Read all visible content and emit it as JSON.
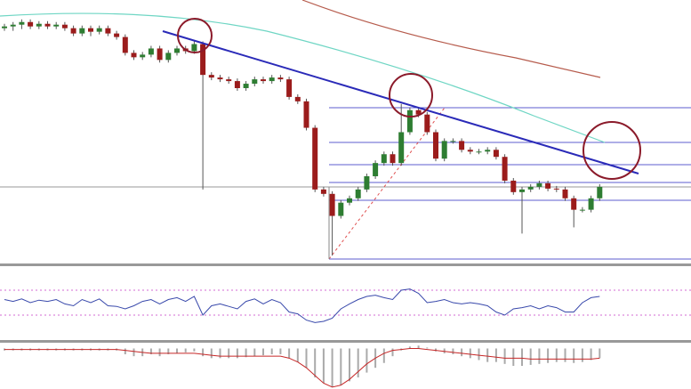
{
  "chart_data": {
    "type": "candlestick",
    "up_color": "#2e7d32",
    "down_color": "#9b1c1c",
    "ylim": [
      0,
      300
    ],
    "open": [
      268,
      270,
      272,
      275,
      270,
      273,
      270,
      272,
      268,
      262,
      268,
      264,
      268,
      262,
      258,
      240,
      235,
      238,
      245,
      232,
      240,
      245,
      242,
      250,
      215,
      212,
      210,
      208,
      200,
      205,
      210,
      208,
      212,
      210,
      190,
      185,
      155,
      85,
      80,
      55,
      70,
      75,
      85,
      100,
      115,
      125,
      115,
      150,
      175,
      170,
      150,
      120,
      140,
      140,
      130,
      128,
      128,
      130,
      122,
      95,
      82,
      85,
      88,
      92,
      86,
      85,
      75,
      62,
      62,
      75
    ],
    "high": [
      273,
      275,
      278,
      278,
      276,
      276,
      275,
      275,
      271,
      271,
      271,
      271,
      271,
      265,
      261,
      243,
      241,
      248,
      248,
      243,
      248,
      248,
      253,
      253,
      218,
      215,
      213,
      211,
      208,
      213,
      213,
      215,
      215,
      213,
      193,
      188,
      158,
      88,
      83,
      73,
      78,
      88,
      103,
      118,
      128,
      128,
      182,
      178,
      178,
      173,
      153,
      143,
      143,
      143,
      133,
      131,
      133,
      133,
      125,
      98,
      88,
      91,
      95,
      95,
      89,
      88,
      78,
      65,
      78,
      91
    ],
    "low": [
      265,
      265,
      267,
      267,
      267,
      267,
      267,
      265,
      259,
      259,
      259,
      261,
      259,
      255,
      237,
      232,
      232,
      235,
      229,
      229,
      237,
      239,
      239,
      85,
      209,
      207,
      205,
      197,
      197,
      202,
      205,
      205,
      207,
      187,
      182,
      152,
      82,
      77,
      10,
      52,
      67,
      72,
      82,
      97,
      112,
      112,
      112,
      147,
      167,
      147,
      117,
      117,
      137,
      127,
      125,
      125,
      125,
      119,
      92,
      79,
      35,
      82,
      85,
      83,
      82,
      72,
      42,
      59,
      59,
      72
    ],
    "close": [
      270,
      272,
      275,
      270,
      273,
      270,
      272,
      268,
      262,
      268,
      264,
      268,
      262,
      258,
      240,
      235,
      238,
      245,
      232,
      240,
      245,
      242,
      250,
      215,
      212,
      210,
      208,
      200,
      205,
      210,
      208,
      212,
      210,
      190,
      185,
      155,
      85,
      80,
      55,
      70,
      75,
      85,
      100,
      115,
      125,
      115,
      150,
      175,
      170,
      150,
      120,
      140,
      140,
      130,
      128,
      128,
      130,
      122,
      95,
      82,
      85,
      88,
      92,
      86,
      85,
      75,
      62,
      62,
      75,
      88
    ],
    "rsi": {
      "color": "#3949ab",
      "ylim": [
        0,
        100
      ],
      "levels": [
        70,
        30
      ],
      "level_color": "#d36bd3",
      "values": [
        55,
        52,
        56,
        50,
        54,
        52,
        55,
        48,
        45,
        55,
        50,
        56,
        45,
        44,
        40,
        45,
        52,
        55,
        48,
        55,
        58,
        52,
        60,
        30,
        45,
        48,
        44,
        40,
        52,
        56,
        48,
        55,
        50,
        35,
        32,
        22,
        18,
        20,
        25,
        40,
        48,
        55,
        60,
        62,
        58,
        55,
        70,
        72,
        65,
        50,
        52,
        55,
        50,
        48,
        50,
        48,
        45,
        35,
        30,
        40,
        42,
        45,
        40,
        45,
        42,
        35,
        35,
        50,
        58,
        60
      ]
    },
    "macd": {
      "ylim": [
        -42,
        6
      ],
      "hist_color": "#aaaaaa",
      "line_color": "#c62828",
      "histogram": [
        -2,
        -2,
        -2,
        -2,
        -2,
        -2,
        -2,
        -2,
        -2,
        -2,
        -2,
        -2,
        -2,
        -2,
        -6,
        -8,
        -8,
        -6,
        -8,
        -6,
        -5,
        -4,
        -3,
        -8,
        -10,
        -10,
        -10,
        -10,
        -9,
        -8,
        -7,
        -6,
        -6,
        -10,
        -14,
        -20,
        -30,
        -36,
        -40,
        -38,
        -34,
        -30,
        -25,
        -20,
        -15,
        -8,
        -2,
        2,
        3,
        1,
        -3,
        -5,
        -6,
        -8,
        -10,
        -12,
        -14,
        -14,
        -16,
        -18,
        -18,
        -17,
        -16,
        -15,
        -14,
        -14,
        -15,
        -14,
        -12,
        -10
      ],
      "signal": [
        -1,
        -1,
        -1,
        -1,
        -1,
        -1,
        -1,
        -1,
        -1,
        -1,
        -1,
        -1,
        -1,
        -1,
        -2,
        -3,
        -4,
        -5,
        -5,
        -5,
        -5,
        -5,
        -5,
        -6,
        -7,
        -8,
        -8,
        -8,
        -8,
        -8,
        -8,
        -8,
        -8,
        -10,
        -14,
        -20,
        -28,
        -36,
        -40,
        -38,
        -32,
        -24,
        -16,
        -10,
        -5,
        -2,
        -1,
        0,
        0,
        -1,
        -2,
        -3,
        -4,
        -5,
        -6,
        -7,
        -8,
        -9,
        -10,
        -10,
        -10,
        -11,
        -11,
        -11,
        -11,
        -11,
        -11,
        -11,
        -11,
        -10
      ]
    }
  }
}
